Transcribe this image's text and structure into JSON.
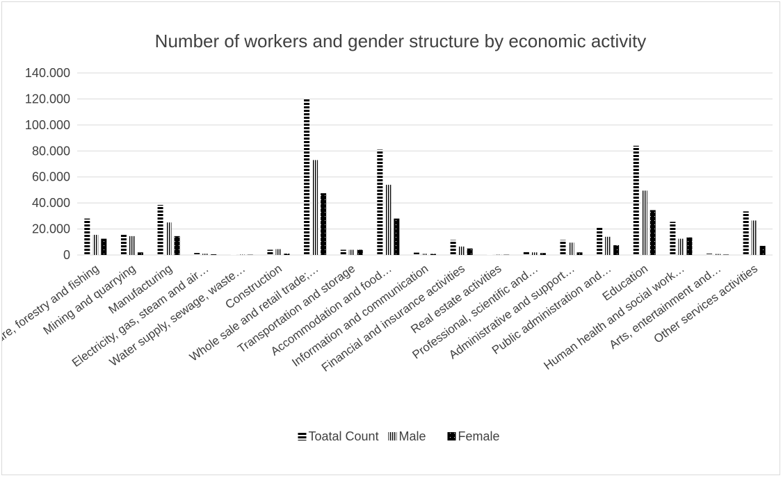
{
  "chart_data": {
    "type": "bar",
    "title": "Number of workers and gender structure by economic activity",
    "xlabel": "",
    "ylabel": "",
    "ylim": [
      0,
      140000
    ],
    "yticks": [
      0,
      20000,
      40000,
      60000,
      80000,
      100000,
      120000,
      140000
    ],
    "ytick_labels": [
      "0",
      "20.000",
      "40.000",
      "60.000",
      "80.000",
      "100.000",
      "120.000",
      "140.000"
    ],
    "grid": true,
    "legend_position": "bottom",
    "categories": [
      "Agriculture, forestry and fishing",
      "Mining and quarrying",
      "Manufacturing",
      "Electricity, gas, steam and air…",
      "Water supply, sewage, waste…",
      "Construction",
      "Whole sale and retail trade;…",
      "Transportation and storage",
      "Accommodation and food…",
      "Information and communication",
      "Financial and insurance activities",
      "Real estate activities",
      "Professional, scientific and…",
      "Administrative and support…",
      "Public administration and…",
      "Education",
      "Human health and social work…",
      "Arts, entertainment and…",
      "Other services activities"
    ],
    "series": [
      {
        "name": "Toatal Count",
        "pattern": "horizontal-stripes",
        "values": [
          28000,
          16500,
          38500,
          1500,
          500,
          4000,
          120000,
          4000,
          81000,
          1800,
          11500,
          500,
          3200,
          11500,
          21000,
          84000,
          25500,
          1000,
          33500
        ]
      },
      {
        "name": "Male",
        "pattern": "vertical-stripes",
        "values": [
          15500,
          14500,
          25000,
          1000,
          300,
          4500,
          73000,
          4000,
          54000,
          1000,
          6500,
          300,
          2000,
          9500,
          14000,
          49500,
          12500,
          800,
          26500
        ]
      },
      {
        "name": "Female",
        "pattern": "solid-dark",
        "values": [
          12500,
          2000,
          14500,
          500,
          200,
          1000,
          47500,
          4000,
          28000,
          800,
          5000,
          200,
          1500,
          2000,
          7500,
          34500,
          13500,
          300,
          7000
        ]
      }
    ],
    "colors": {
      "bar": "#000000",
      "grid": "#d9d9d9",
      "text": "#404040"
    }
  }
}
